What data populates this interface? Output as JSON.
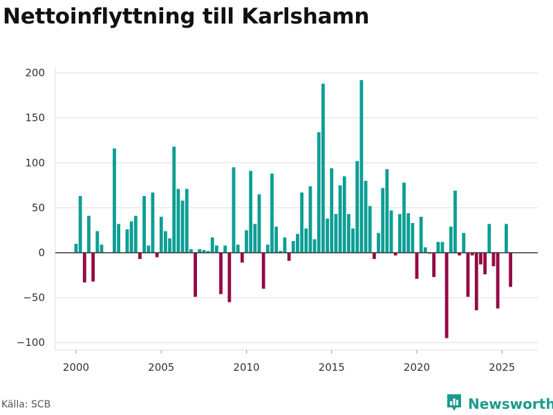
{
  "title": "Nettoinflyttning till Karlshamn",
  "source": "Källa: SCB",
  "brand": "Newsworthy",
  "colors": {
    "positive": "#0d9e95",
    "negative": "#950a45",
    "grid": "#dedede",
    "zero_line": "#333333",
    "brand": "#1d9a8e"
  },
  "chart_data": {
    "type": "bar",
    "title": "Nettoinflyttning till Karlshamn",
    "xlabel": "",
    "ylabel": "",
    "x_unit": "quarter",
    "xlim": [
      1999.375,
      2026.625
    ],
    "ylim": [
      -115,
      200
    ],
    "yticks": [
      -100,
      -50,
      0,
      50,
      100,
      150,
      200
    ],
    "ytick_labels": [
      "−100",
      "−50",
      "0",
      "50",
      "100",
      "150",
      "200"
    ],
    "xticks": [
      2000,
      2005,
      2010,
      2015,
      2020,
      2025
    ],
    "xtick_labels": [
      "2000",
      "2005",
      "2010",
      "2015",
      "2020",
      "2025"
    ],
    "grid": true,
    "legend": "none",
    "start_period": "2000 Q1",
    "values": [
      10,
      63,
      -33,
      41,
      -32,
      24,
      9,
      0,
      0,
      116,
      32,
      0,
      26,
      35,
      41,
      -7,
      63,
      8,
      67,
      -5,
      40,
      24,
      16,
      118,
      71,
      58,
      71,
      4,
      -49,
      4,
      3,
      2,
      17,
      8,
      -46,
      8,
      -55,
      95,
      9,
      -11,
      25,
      91,
      32,
      65,
      -40,
      9,
      88,
      29,
      2,
      17,
      -9,
      13,
      21,
      67,
      27,
      74,
      15,
      134,
      188,
      38,
      94,
      43,
      75,
      85,
      43,
      27,
      102,
      192,
      80,
      52,
      -7,
      22,
      72,
      93,
      47,
      -3,
      43,
      78,
      44,
      33,
      -29,
      40,
      6,
      -1,
      -27,
      12,
      12,
      -95,
      29,
      69,
      -3,
      22,
      -49,
      -3,
      -64,
      -13,
      -24,
      32,
      -15,
      -62,
      0,
      32,
      -38
    ]
  }
}
